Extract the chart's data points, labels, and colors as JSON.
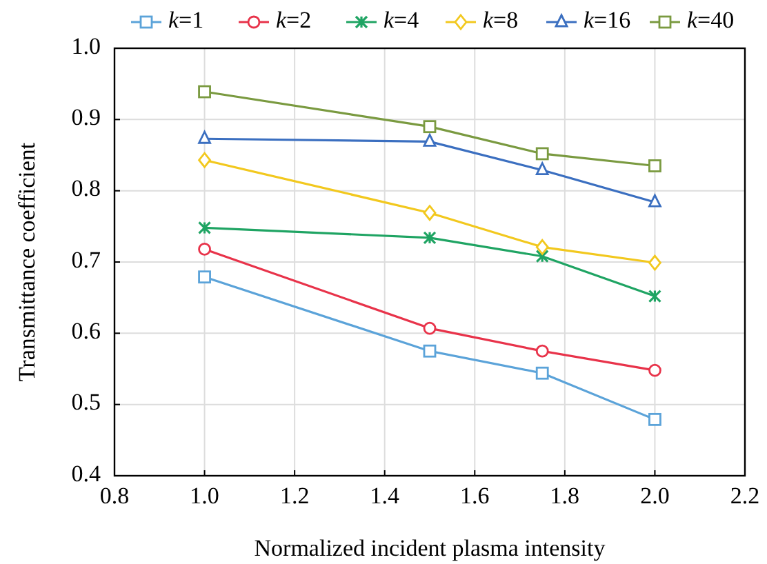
{
  "chart_data": {
    "type": "line",
    "xlabel": "Normalized incident plasma intensity",
    "ylabel": "Transmittance coefficient",
    "x": [
      1.0,
      1.5,
      1.75,
      2.0
    ],
    "xlim": [
      0.8,
      2.2
    ],
    "xticks": [
      {
        "value": 0.8,
        "label": "0.8"
      },
      {
        "value": 1.0,
        "label": "1.0"
      },
      {
        "value": 1.2,
        "label": "1.2"
      },
      {
        "value": 1.4,
        "label": "1.4"
      },
      {
        "value": 1.6,
        "label": "1.6"
      },
      {
        "value": 1.8,
        "label": "1.8"
      },
      {
        "value": 2.0,
        "label": "2.0"
      },
      {
        "value": 2.2,
        "label": "2.2"
      }
    ],
    "ylim": [
      0.4,
      1.0
    ],
    "yticks": [
      {
        "value": 0.4,
        "label": "0.4"
      },
      {
        "value": 0.5,
        "label": "0.5"
      },
      {
        "value": 0.6,
        "label": "0.6"
      },
      {
        "value": 0.7,
        "label": "0.7"
      },
      {
        "value": 0.8,
        "label": "0.8"
      },
      {
        "value": 0.9,
        "label": "0.9"
      },
      {
        "value": 1.0,
        "label": "1.0"
      }
    ],
    "grid": true,
    "legend": "top",
    "line_style": "solid",
    "series": [
      {
        "name": "k=1",
        "color": "#5ba3d9",
        "marker": "square",
        "values": [
          0.679,
          0.575,
          0.544,
          0.479
        ]
      },
      {
        "name": "k=2",
        "color": "#e8334a",
        "marker": "circle",
        "values": [
          0.718,
          0.607,
          0.575,
          0.548
        ]
      },
      {
        "name": "k=4",
        "color": "#1fa463",
        "marker": "cross",
        "values": [
          0.748,
          0.734,
          0.708,
          0.652
        ]
      },
      {
        "name": "k=8",
        "color": "#f2c81e",
        "marker": "diamond",
        "values": [
          0.843,
          0.769,
          0.721,
          0.699
        ]
      },
      {
        "name": "k=16",
        "color": "#3b6fc0",
        "marker": "triangle",
        "values": [
          0.873,
          0.869,
          0.829,
          0.784
        ]
      },
      {
        "name": "k=40",
        "color": "#7a9a40",
        "marker": "square",
        "values": [
          0.939,
          0.89,
          0.852,
          0.835
        ]
      }
    ]
  }
}
